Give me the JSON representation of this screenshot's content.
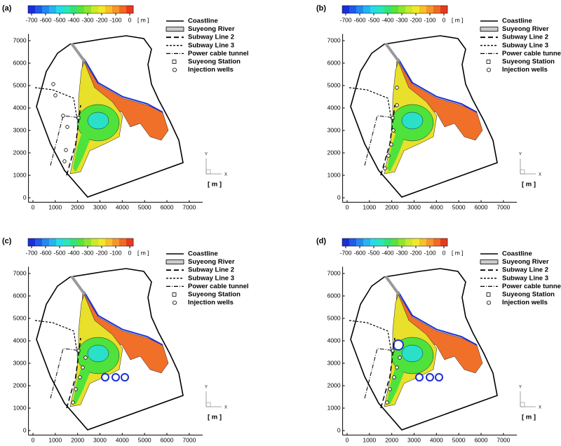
{
  "chart_data": [
    {
      "type": "contour",
      "panel_label": "(a)",
      "xlim": [
        -200,
        7600
      ],
      "ylim": [
        -200,
        7300
      ],
      "xticks": [
        0,
        1000,
        2000,
        3000,
        4000,
        5000,
        6000,
        7000
      ],
      "yticks": [
        0,
        1000,
        2000,
        3000,
        4000,
        5000,
        6000,
        7000
      ],
      "colorbar": {
        "lim": [
          -725,
          25
        ],
        "ticks": [
          -700,
          -600,
          -500,
          -400,
          -300,
          -200,
          -100,
          0
        ],
        "unit": "[ m ]",
        "colors": [
          "#1a2fd6",
          "#1f5ae8",
          "#2388f0",
          "#25b4ef",
          "#25dbe6",
          "#2ae6b8",
          "#33e37a",
          "#57e33a",
          "#8fe52c",
          "#c8ea2a",
          "#f2e82a",
          "#f7c02a",
          "#f5962a",
          "#f06a24",
          "#e63a1f"
        ]
      },
      "legend": [
        "Coastline",
        "Suyeong River",
        "Subway Line 2",
        "Subway Line 3",
        "Power cable tunnel",
        "Suyeong Station",
        "Injection wells"
      ],
      "axis_icon": {
        "x": "X",
        "y": "Y",
        "unit": "[ m ]"
      }
    },
    {
      "type": "contour",
      "panel_label": "(b)",
      "xlim": [
        -200,
        7600
      ],
      "ylim": [
        -200,
        7300
      ],
      "xticks": [
        0,
        1000,
        2000,
        3000,
        4000,
        5000,
        6000,
        7000
      ],
      "yticks": [
        0,
        1000,
        2000,
        3000,
        4000,
        5000,
        6000,
        7000
      ],
      "colorbar": {
        "lim": [
          -725,
          25
        ],
        "ticks": [
          -700,
          -600,
          -500,
          -400,
          -300,
          -200,
          -100,
          0
        ],
        "unit": "[ m ]",
        "colors": [
          "#1a2fd6",
          "#1f5ae8",
          "#2388f0",
          "#25b4ef",
          "#25dbe6",
          "#2ae6b8",
          "#33e37a",
          "#57e33a",
          "#8fe52c",
          "#c8ea2a",
          "#f2e82a",
          "#f7c02a",
          "#f5962a",
          "#f06a24",
          "#e63a1f"
        ]
      },
      "legend": [
        "Coastline",
        "Suyeong River",
        "Subway Line 2",
        "Subway Line 3",
        "Power cable tunnel",
        "Suyeong Station",
        "Injection wells"
      ],
      "axis_icon": {
        "x": "X",
        "y": "Y",
        "unit": "[ m ]"
      }
    },
    {
      "type": "contour",
      "panel_label": "(c)",
      "xlim": [
        -200,
        7600
      ],
      "ylim": [
        -200,
        7300
      ],
      "xticks": [
        0,
        1000,
        2000,
        3000,
        4000,
        5000,
        6000,
        7000
      ],
      "yticks": [
        0,
        1000,
        2000,
        3000,
        4000,
        5000,
        6000,
        7000
      ],
      "colorbar": {
        "lim": [
          -725,
          25
        ],
        "ticks": [
          -700,
          -600,
          -500,
          -400,
          -300,
          -200,
          -100,
          0
        ],
        "unit": "[ m ]",
        "colors": [
          "#1a2fd6",
          "#1f5ae8",
          "#2388f0",
          "#25b4ef",
          "#25dbe6",
          "#2ae6b8",
          "#33e37a",
          "#57e33a",
          "#8fe52c",
          "#c8ea2a",
          "#f2e82a",
          "#f7c02a",
          "#f5962a",
          "#f06a24",
          "#e63a1f"
        ]
      },
      "legend": [
        "Coastline",
        "Suyeong River",
        "Subway Line 2",
        "Subway Line 3",
        "Power cable tunnel",
        "Suyeong Station",
        "Injection wells"
      ],
      "axis_icon": {
        "x": "X",
        "y": "Y",
        "unit": "[ m ]"
      }
    },
    {
      "type": "contour",
      "panel_label": "(d)",
      "xlim": [
        -200,
        7600
      ],
      "ylim": [
        -200,
        7300
      ],
      "xticks": [
        0,
        1000,
        2000,
        3000,
        4000,
        5000,
        6000,
        7000
      ],
      "yticks": [
        0,
        1000,
        2000,
        3000,
        4000,
        5000,
        6000,
        7000
      ],
      "colorbar": {
        "lim": [
          -725,
          25
        ],
        "ticks": [
          -700,
          -600,
          -500,
          -400,
          -300,
          -200,
          -100,
          0
        ],
        "unit": "[ m ]",
        "colors": [
          "#1a2fd6",
          "#1f5ae8",
          "#2388f0",
          "#25b4ef",
          "#25dbe6",
          "#2ae6b8",
          "#33e37a",
          "#57e33a",
          "#8fe52c",
          "#c8ea2a",
          "#f2e82a",
          "#f7c02a",
          "#f5962a",
          "#f06a24",
          "#e63a1f"
        ]
      },
      "legend": [
        "Coastline",
        "Suyeong River",
        "Subway Line 2",
        "Subway Line 3",
        "Power cable tunnel",
        "Suyeong Station",
        "Injection wells"
      ],
      "axis_icon": {
        "x": "X",
        "y": "Y",
        "unit": "[ m ]"
      }
    }
  ]
}
